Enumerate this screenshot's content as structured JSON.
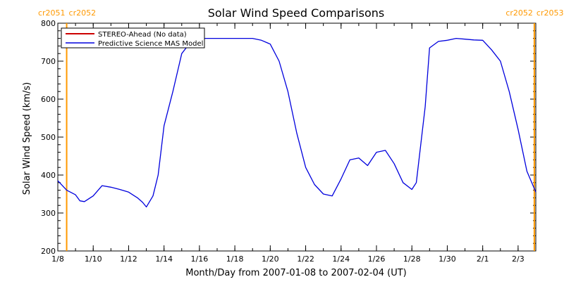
{
  "chart_data": {
    "type": "line",
    "title": "Solar Wind Speed Comparisons",
    "xlabel": "Month/Day from 2007-01-08 to 2007-02-04 (UT)",
    "ylabel": "Solar Wind Speed (km/s)",
    "xlim": [
      "2007-01-08",
      "2007-02-04"
    ],
    "ylim": [
      200,
      800
    ],
    "y_ticks": [
      200,
      300,
      400,
      500,
      600,
      700,
      800
    ],
    "x_ticks": [
      {
        "date": "2007-01-08",
        "label": "1/8"
      },
      {
        "date": "2007-01-10",
        "label": "1/10"
      },
      {
        "date": "2007-01-12",
        "label": "1/12"
      },
      {
        "date": "2007-01-14",
        "label": "1/14"
      },
      {
        "date": "2007-01-16",
        "label": "1/16"
      },
      {
        "date": "2007-01-18",
        "label": "1/18"
      },
      {
        "date": "2007-01-20",
        "label": "1/20"
      },
      {
        "date": "2007-01-22",
        "label": "1/22"
      },
      {
        "date": "2007-01-24",
        "label": "1/24"
      },
      {
        "date": "2007-01-26",
        "label": "1/26"
      },
      {
        "date": "2007-01-28",
        "label": "1/28"
      },
      {
        "date": "2007-01-30",
        "label": "1/30"
      },
      {
        "date": "2007-02-01",
        "label": "2/1"
      },
      {
        "date": "2007-02-03",
        "label": "2/3"
      }
    ],
    "legend": {
      "placement": "top-left",
      "entries": [
        {
          "label": "STEREO-Ahead (No data)",
          "color": "#cc0000"
        },
        {
          "label": "Predictive Science MAS Model",
          "color": "#0000dd"
        }
      ]
    },
    "rotation_markers": [
      {
        "date": "2007-01-08 12:00",
        "left_label": "cr2051",
        "right_label": "cr2052"
      },
      {
        "date": "2007-02-03 22:00",
        "left_label": "cr2052",
        "right_label": "cr2053"
      }
    ],
    "marker_color": "#ff9900",
    "series": [
      {
        "name": "Predictive Science MAS Model",
        "color": "#0000dd",
        "x": [
          "2007-01-08 00:00",
          "2007-01-08 12:00",
          "2007-01-09 00:00",
          "2007-01-09 06:00",
          "2007-01-09 12:00",
          "2007-01-10 00:00",
          "2007-01-10 12:00",
          "2007-01-11 00:00",
          "2007-01-11 12:00",
          "2007-01-12 00:00",
          "2007-01-12 12:00",
          "2007-01-12 19:00",
          "2007-01-13 00:00",
          "2007-01-13 09:00",
          "2007-01-13 16:00",
          "2007-01-14 00:00",
          "2007-01-14 12:00",
          "2007-01-15 00:00",
          "2007-01-15 12:00",
          "2007-01-16 00:00",
          "2007-01-17 00:00",
          "2007-01-18 00:00",
          "2007-01-19 00:00",
          "2007-01-19 12:00",
          "2007-01-20 00:00",
          "2007-01-20 12:00",
          "2007-01-21 00:00",
          "2007-01-21 12:00",
          "2007-01-22 00:00",
          "2007-01-22 12:00",
          "2007-01-23 00:00",
          "2007-01-23 12:00",
          "2007-01-24 00:00",
          "2007-01-24 12:00",
          "2007-01-25 00:00",
          "2007-01-25 12:00",
          "2007-01-26 00:00",
          "2007-01-26 12:00",
          "2007-01-27 00:00",
          "2007-01-27 12:00",
          "2007-01-28 00:00",
          "2007-01-28 06:00",
          "2007-01-28 18:00",
          "2007-01-29 00:00",
          "2007-01-29 12:00",
          "2007-01-30 00:00",
          "2007-01-30 12:00",
          "2007-01-31 00:00",
          "2007-01-31 12:00",
          "2007-02-01 00:00",
          "2007-02-01 12:00",
          "2007-02-02 00:00",
          "2007-02-02 12:00",
          "2007-02-03 00:00",
          "2007-02-03 12:00",
          "2007-02-04 00:00"
        ],
        "y": [
          385,
          360,
          348,
          332,
          330,
          345,
          372,
          368,
          362,
          355,
          340,
          328,
          316,
          345,
          400,
          530,
          620,
          720,
          750,
          760,
          760,
          760,
          760,
          755,
          745,
          700,
          620,
          510,
          420,
          375,
          350,
          345,
          390,
          440,
          445,
          425,
          460,
          465,
          430,
          380,
          362,
          380,
          580,
          735,
          752,
          755,
          760,
          758,
          756,
          755,
          730,
          700,
          620,
          520,
          410,
          355
        ]
      }
    ]
  }
}
